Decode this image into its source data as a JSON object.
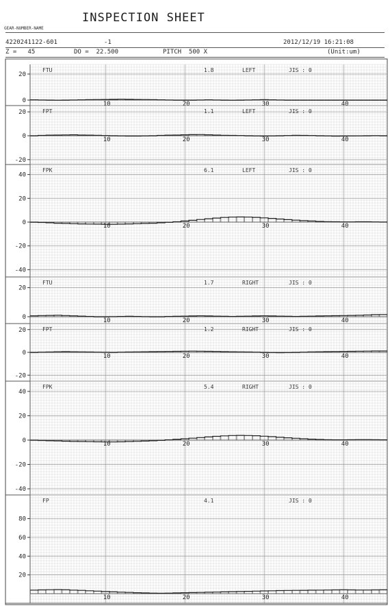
{
  "header": {
    "title": "INSPECTION SHEET",
    "label_row": "GEAR-NUMBER-NAME",
    "part_no": "4220241122-601",
    "suffix": "-1",
    "datetime": "2012/12/19 16:21:08",
    "z": "Z =   45",
    "do": "DO =  22.500",
    "pitch": "PITCH  500 X",
    "unit": "(Unit:um)"
  },
  "chart_data": {
    "type": "line",
    "x_ticks": [
      10,
      20,
      30,
      40
    ],
    "panels": [
      {
        "name": "FTU",
        "value": "1.8",
        "side": "LEFT",
        "jis": "JIS :  0",
        "yticks": [
          20,
          0
        ],
        "ylim": [
          -6,
          26
        ],
        "values": [
          0.2,
          0.1,
          0.0,
          -0.1,
          0.0,
          0.1,
          0.2,
          0.3,
          0.4,
          0.5,
          0.6,
          0.7,
          0.6,
          0.5,
          0.4,
          0.3,
          0.2,
          0.1,
          0.0,
          0.0,
          0.0,
          0.1,
          0.2,
          0.1,
          0.0,
          -0.1,
          0.0,
          0.1,
          0.2,
          0.3,
          0.2,
          0.1,
          0.0,
          0.0,
          0.0,
          0.0,
          0.0,
          0.0,
          0.0,
          0.0,
          0.0,
          0.0,
          0.0,
          0.0,
          0.0
        ]
      },
      {
        "name": "FPT",
        "value": "1.1",
        "side": "LEFT",
        "jis": "JIS :  0",
        "yticks": [
          20,
          0,
          -20
        ],
        "ylim": [
          -24,
          24
        ],
        "values": [
          0.0,
          0.3,
          0.5,
          0.6,
          0.7,
          0.8,
          0.6,
          0.5,
          0.4,
          0.2,
          0.0,
          -0.2,
          -0.3,
          -0.3,
          -0.2,
          0.0,
          0.3,
          0.5,
          0.6,
          0.8,
          0.9,
          1.0,
          0.8,
          0.6,
          0.4,
          0.3,
          0.2,
          0.0,
          -0.2,
          -0.3,
          -0.2,
          0.0,
          0.2,
          0.4,
          0.3,
          0.2,
          0.0,
          -0.2,
          -0.4,
          -0.3,
          -0.2,
          -0.1,
          0.0,
          0.1,
          0.0
        ]
      },
      {
        "name": "FPK",
        "value": "6.1",
        "side": "LEFT",
        "jis": "JIS :  0",
        "yticks": [
          40,
          20,
          0,
          -20,
          -40
        ],
        "ylim": [
          -44,
          46
        ],
        "values": [
          0.0,
          -0.3,
          -0.6,
          -0.9,
          -1.1,
          -1.3,
          -1.5,
          -1.6,
          -1.7,
          -1.8,
          -1.8,
          -1.7,
          -1.5,
          -1.3,
          -1.1,
          -0.9,
          -0.6,
          -0.2,
          0.3,
          0.9,
          1.5,
          2.2,
          2.8,
          3.4,
          3.9,
          4.2,
          4.3,
          4.2,
          4.0,
          3.6,
          3.1,
          2.6,
          2.1,
          1.6,
          1.2,
          0.9,
          0.6,
          0.4,
          0.3,
          0.2,
          0.2,
          0.3,
          0.3,
          0.2,
          0.1
        ]
      },
      {
        "name": "FTU",
        "value": "1.7",
        "side": "RIGHT",
        "jis": "JIS :  0",
        "yticks": [
          20,
          0
        ],
        "ylim": [
          -6,
          26
        ],
        "values": [
          0.6,
          0.8,
          0.9,
          1.0,
          0.8,
          0.6,
          0.4,
          0.2,
          0.0,
          0.0,
          0.1,
          0.2,
          0.3,
          0.2,
          0.1,
          0.0,
          0.0,
          0.2,
          0.3,
          0.4,
          0.5,
          0.6,
          0.5,
          0.4,
          0.3,
          0.2,
          0.3,
          0.4,
          0.5,
          0.6,
          0.5,
          0.4,
          0.3,
          0.2,
          0.3,
          0.4,
          0.5,
          0.6,
          0.7,
          0.8,
          0.9,
          1.0,
          1.2,
          1.4,
          1.5
        ]
      },
      {
        "name": "FPT",
        "value": "1.2",
        "side": "RIGHT",
        "jis": "JIS :  0",
        "yticks": [
          20,
          0,
          -20
        ],
        "ylim": [
          -24,
          24
        ],
        "values": [
          0.0,
          0.2,
          0.3,
          0.5,
          0.6,
          0.5,
          0.4,
          0.3,
          0.2,
          0.1,
          0.0,
          0.2,
          0.3,
          0.4,
          0.5,
          0.6,
          0.7,
          0.8,
          0.9,
          1.0,
          1.1,
          1.0,
          0.9,
          0.8,
          0.6,
          0.5,
          0.4,
          0.3,
          0.2,
          0.0,
          -0.2,
          -0.3,
          -0.2,
          0.0,
          0.2,
          0.4,
          0.5,
          0.6,
          0.7,
          0.8,
          0.9,
          1.0,
          1.1,
          1.2,
          1.2
        ]
      },
      {
        "name": "FPK",
        "value": "5.4",
        "side": "RIGHT",
        "jis": "JIS :  0",
        "yticks": [
          40,
          20,
          0,
          -20,
          -40
        ],
        "ylim": [
          -44,
          46
        ],
        "values": [
          0.0,
          -0.3,
          -0.5,
          -0.7,
          -0.9,
          -1.1,
          -1.2,
          -1.3,
          -1.4,
          -1.5,
          -1.5,
          -1.4,
          -1.2,
          -1.0,
          -0.8,
          -0.5,
          -0.2,
          0.2,
          0.6,
          1.1,
          1.6,
          2.1,
          2.6,
          3.1,
          3.5,
          3.8,
          3.9,
          3.8,
          3.6,
          3.2,
          2.8,
          2.3,
          1.9,
          1.5,
          1.1,
          0.8,
          0.5,
          0.3,
          0.2,
          0.2,
          0.3,
          0.4,
          0.4,
          0.3,
          0.2
        ]
      },
      {
        "name": "FP",
        "value": "4.1",
        "side": "",
        "jis": "JIS :  0",
        "yticks": [
          80,
          60,
          40,
          20
        ],
        "ylim": [
          0,
          100
        ],
        "values": [
          3.8,
          4.0,
          4.2,
          4.3,
          4.1,
          3.8,
          3.5,
          3.1,
          2.7,
          2.3,
          1.9,
          1.6,
          1.3,
          1.0,
          0.8,
          0.6,
          0.5,
          0.6,
          0.8,
          1.0,
          1.2,
          1.3,
          1.5,
          1.7,
          1.9,
          2.1,
          2.3,
          2.5,
          2.7,
          2.9,
          3.1,
          3.3,
          3.4,
          3.5,
          3.6,
          3.7,
          3.8,
          3.9,
          4.0,
          4.1,
          4.0,
          3.9,
          3.9,
          4.0,
          4.1
        ]
      }
    ]
  }
}
